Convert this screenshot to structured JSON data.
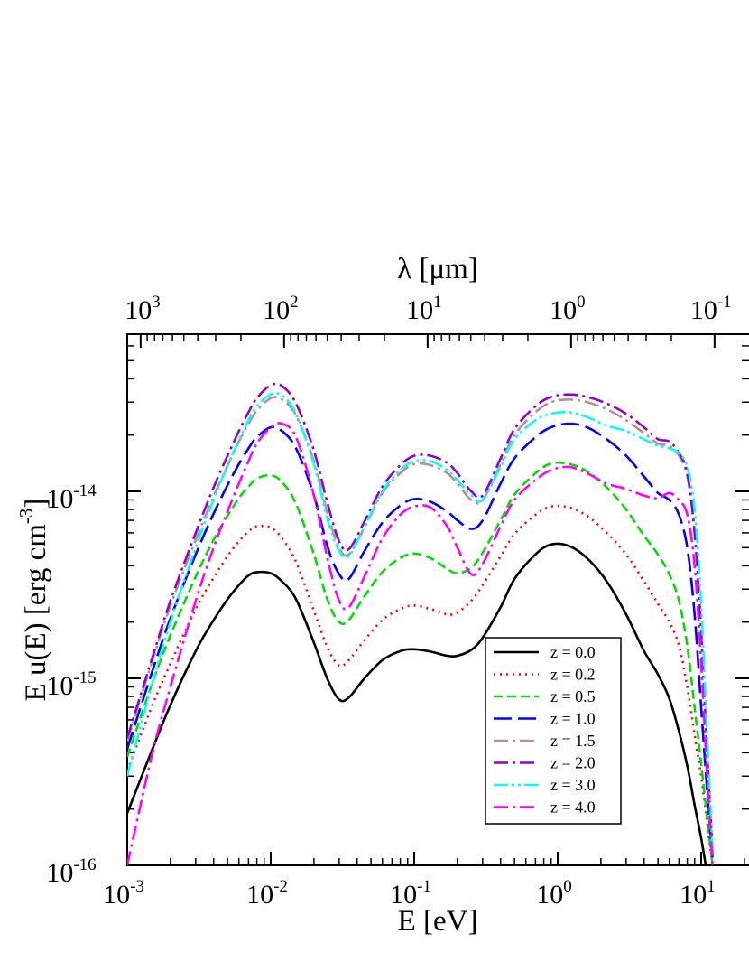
{
  "chart_data": {
    "type": "line",
    "xlabel": "E [eV]",
    "ylabel": "E u(E) [erg cm",
    "ylabel_sup": "-3",
    "ylabel_end": "]",
    "top_xlabel": "λ [μm]",
    "x_scale": "log",
    "y_scale": "log",
    "xlim": [
      0.001,
      17.8
    ],
    "ylim": [
      1e-16,
      6e-14
    ],
    "grid": false,
    "legend_position": "lower-right",
    "x_ticks": [
      {
        "base": "10",
        "exp": "-3",
        "value": 0.001
      },
      {
        "base": "10",
        "exp": "-2",
        "value": 0.01
      },
      {
        "base": "10",
        "exp": "-1",
        "value": 0.1
      },
      {
        "base": "10",
        "exp": "0",
        "value": 1
      },
      {
        "base": "10",
        "exp": "1",
        "value": 10
      }
    ],
    "top_ticks": [
      {
        "base": "10",
        "exp": "3",
        "lambda": 1000
      },
      {
        "base": "10",
        "exp": "2",
        "lambda": 100
      },
      {
        "base": "10",
        "exp": "1",
        "lambda": 10
      },
      {
        "base": "10",
        "exp": "0",
        "lambda": 1
      },
      {
        "base": "10",
        "exp": "-1",
        "lambda": 0.1
      }
    ],
    "y_ticks": [
      {
        "base": "10",
        "exp": "-16",
        "value": 1e-16
      },
      {
        "base": "10",
        "exp": "-15",
        "value": 1e-15
      },
      {
        "base": "10",
        "exp": "-14",
        "value": 1e-14
      }
    ],
    "series": [
      {
        "name": "z = 0.0",
        "color": "#000000",
        "dash": "solid",
        "x": [
          0.001,
          0.0015,
          0.002,
          0.003,
          0.004,
          0.005,
          0.006,
          0.007,
          0.008,
          0.01,
          0.012,
          0.015,
          0.02,
          0.025,
          0.03,
          0.035,
          0.045,
          0.06,
          0.08,
          0.1,
          0.13,
          0.17,
          0.2,
          0.25,
          0.3,
          0.4,
          0.5,
          0.7,
          0.9,
          1.2,
          1.6,
          2.2,
          3.0,
          4.0,
          5.0,
          6.0,
          7.0,
          8.0,
          9.0,
          10.0,
          11.0
        ],
        "y": [
          1.9e-16,
          4.2e-16,
          7.2e-16,
          1.4e-15,
          2.05e-15,
          2.65e-15,
          3.15e-15,
          3.55e-15,
          3.7e-15,
          3.65e-15,
          3.3e-15,
          2.65e-15,
          1.55e-15,
          9.8e-16,
          7.7e-16,
          7.9e-16,
          1e-15,
          1.25e-15,
          1.4e-15,
          1.43e-15,
          1.39e-15,
          1.32e-15,
          1.32e-15,
          1.42e-15,
          1.65e-15,
          2.4e-15,
          3.4e-15,
          4.6e-15,
          5.2e-15,
          5.1e-15,
          4.4e-15,
          3.3e-15,
          2.2e-15,
          1.4e-15,
          1.05e-15,
          7.8e-16,
          5.2e-16,
          3.4e-16,
          2.1e-16,
          1.4e-16,
          9e-17
        ]
      },
      {
        "name": "z = 0.2",
        "color": "#ff0000",
        "dash": "dotted",
        "x": [
          0.001,
          0.0015,
          0.002,
          0.003,
          0.004,
          0.005,
          0.006,
          0.007,
          0.008,
          0.01,
          0.012,
          0.015,
          0.02,
          0.025,
          0.03,
          0.035,
          0.045,
          0.06,
          0.08,
          0.1,
          0.13,
          0.17,
          0.2,
          0.25,
          0.3,
          0.4,
          0.5,
          0.7,
          0.9,
          1.2,
          1.6,
          2.2,
          3.0,
          4.0,
          5.0,
          6.0,
          7.0,
          8.0,
          9.0,
          10.0,
          11.0,
          12.0
        ],
        "y": [
          3.2e-16,
          7.2e-16,
          1.2e-15,
          2.35e-15,
          3.45e-15,
          4.5e-15,
          5.4e-15,
          6.1e-15,
          6.5e-15,
          6.4e-15,
          5.6e-15,
          4.2e-15,
          2.3e-15,
          1.45e-15,
          1.17e-15,
          1.25e-15,
          1.6e-15,
          2.05e-15,
          2.35e-15,
          2.45e-15,
          2.35e-15,
          2.2e-15,
          2.25e-15,
          2.6e-15,
          3.15e-15,
          4.5e-15,
          5.9e-15,
          7.5e-15,
          8.3e-15,
          8.2e-15,
          7.4e-15,
          6e-15,
          4.6e-15,
          3.3e-15,
          2.5e-15,
          2e-15,
          1.5e-15,
          9e-16,
          5e-16,
          3e-16,
          1.7e-16,
          1e-16
        ]
      },
      {
        "name": "z = 0.5",
        "color": "#00dd00",
        "dash": "dashed",
        "x": [
          0.001,
          0.0015,
          0.002,
          0.003,
          0.004,
          0.005,
          0.006,
          0.007,
          0.008,
          0.01,
          0.012,
          0.015,
          0.02,
          0.025,
          0.03,
          0.035,
          0.045,
          0.06,
          0.08,
          0.1,
          0.13,
          0.17,
          0.2,
          0.25,
          0.3,
          0.4,
          0.5,
          0.7,
          0.9,
          1.2,
          1.6,
          2.2,
          3.0,
          4.0,
          5.0,
          6.0,
          7.0,
          8.0,
          9.0,
          10.0,
          11.0,
          12.0
        ],
        "y": [
          3.8e-16,
          9.5e-16,
          1.7e-15,
          3.5e-15,
          5.5e-15,
          7.4e-15,
          9.2e-15,
          1.06e-14,
          1.17e-14,
          1.22e-14,
          1.12e-14,
          8.6e-15,
          4.6e-15,
          2.6e-15,
          2e-15,
          2.05e-15,
          2.75e-15,
          3.7e-15,
          4.4e-15,
          4.65e-15,
          4.4e-15,
          3.85e-15,
          3.65e-15,
          3.9e-15,
          4.7e-15,
          7e-15,
          9.6e-15,
          1.25e-14,
          1.41e-14,
          1.4e-14,
          1.28e-14,
          1.05e-14,
          8e-15,
          5.8e-15,
          4.6e-15,
          3.6e-15,
          2.6e-15,
          1.5e-15,
          7e-16,
          3.5e-16,
          1.8e-16,
          1e-16
        ]
      },
      {
        "name": "z = 1.0",
        "color": "#0000ff",
        "dash": "longdash",
        "x": [
          0.001,
          0.0015,
          0.002,
          0.003,
          0.004,
          0.005,
          0.006,
          0.007,
          0.008,
          0.01,
          0.012,
          0.015,
          0.02,
          0.025,
          0.03,
          0.035,
          0.045,
          0.06,
          0.08,
          0.1,
          0.13,
          0.17,
          0.2,
          0.25,
          0.3,
          0.4,
          0.5,
          0.7,
          0.9,
          1.2,
          1.6,
          2.2,
          3.0,
          4.0,
          5.0,
          6.0,
          7.0,
          8.0,
          9.0,
          10.0,
          11.0,
          12.0
        ],
        "y": [
          4.2e-16,
          1.1e-15,
          2.1e-15,
          4.6e-15,
          7.6e-15,
          1.08e-14,
          1.4e-14,
          1.7e-14,
          1.95e-14,
          2.2e-14,
          2.1e-14,
          1.7e-14,
          9.5e-15,
          5e-15,
          3.6e-15,
          3.4e-15,
          4.8e-15,
          6.8e-15,
          8.4e-15,
          9.1e-15,
          8.8e-15,
          7.8e-15,
          7e-15,
          6.3e-15,
          7e-15,
          1.1e-14,
          1.5e-14,
          1.95e-14,
          2.2e-14,
          2.3e-14,
          2.2e-14,
          1.9e-14,
          1.55e-14,
          1.2e-14,
          9.8e-15,
          9e-15,
          7.5e-15,
          5e-15,
          2.2e-15,
          7e-16,
          2.5e-16,
          1.1e-16
        ]
      },
      {
        "name": "z = 1.5",
        "color": "#bc8f8f",
        "dash": "dashdot",
        "x": [
          0.001,
          0.0015,
          0.002,
          0.003,
          0.004,
          0.005,
          0.006,
          0.007,
          0.008,
          0.01,
          0.012,
          0.015,
          0.02,
          0.025,
          0.03,
          0.035,
          0.045,
          0.06,
          0.08,
          0.1,
          0.13,
          0.17,
          0.2,
          0.25,
          0.3,
          0.4,
          0.5,
          0.7,
          0.9,
          1.2,
          1.6,
          2.2,
          3.0,
          4.0,
          5.0,
          6.0,
          7.0,
          8.0,
          9.0,
          10.0,
          11.0,
          12.0
        ],
        "y": [
          4.6e-16,
          1.25e-15,
          2.45e-15,
          5.5e-15,
          9.4e-15,
          1.37e-14,
          1.85e-14,
          2.3e-14,
          2.7e-14,
          3.15e-14,
          3.1e-14,
          2.55e-14,
          1.45e-14,
          7.5e-15,
          5e-15,
          4.6e-15,
          6.4e-15,
          9.8e-15,
          1.25e-14,
          1.4e-14,
          1.38e-14,
          1.25e-14,
          1.1e-14,
          9e-15,
          9e-15,
          1.4e-14,
          2e-14,
          2.65e-14,
          3e-14,
          3.1e-14,
          3e-14,
          2.75e-14,
          2.4e-14,
          2.05e-14,
          1.8e-14,
          1.75e-14,
          1.55e-14,
          1.2e-14,
          6e-15,
          1.8e-15,
          4e-16,
          1.2e-16
        ]
      },
      {
        "name": "z = 2.0",
        "color": "#9400d3",
        "dash": "dashdot",
        "x": [
          0.001,
          0.0015,
          0.002,
          0.003,
          0.004,
          0.005,
          0.006,
          0.007,
          0.008,
          0.01,
          0.012,
          0.015,
          0.02,
          0.025,
          0.03,
          0.035,
          0.045,
          0.06,
          0.08,
          0.1,
          0.13,
          0.17,
          0.2,
          0.25,
          0.3,
          0.4,
          0.5,
          0.7,
          0.9,
          1.2,
          1.6,
          2.2,
          3.0,
          4.0,
          5.0,
          6.0,
          7.0,
          8.0,
          9.0,
          10.0,
          11.0,
          12.0
        ],
        "y": [
          4.8e-16,
          1.3e-15,
          2.6e-15,
          6e-15,
          1.05e-14,
          1.55e-14,
          2.1e-14,
          2.65e-14,
          3.15e-14,
          3.7e-14,
          3.65e-14,
          2.95e-14,
          1.65e-14,
          8.5e-15,
          5.4e-15,
          4.9e-15,
          6.9e-15,
          1.06e-14,
          1.38e-14,
          1.55e-14,
          1.55e-14,
          1.42e-14,
          1.25e-14,
          1e-14,
          9.5e-15,
          1.5e-14,
          2.15e-14,
          2.85e-14,
          3.2e-14,
          3.3e-14,
          3.2e-14,
          2.95e-14,
          2.6e-14,
          2.2e-14,
          1.9e-14,
          1.85e-14,
          1.6e-14,
          1.25e-14,
          6e-15,
          1.8e-15,
          4e-16,
          1.2e-16
        ]
      },
      {
        "name": "z = 3.0",
        "color": "#00ffff",
        "dash": "dashdotdot",
        "x": [
          0.001,
          0.0015,
          0.002,
          0.003,
          0.004,
          0.005,
          0.006,
          0.007,
          0.008,
          0.01,
          0.012,
          0.015,
          0.02,
          0.025,
          0.03,
          0.035,
          0.045,
          0.06,
          0.08,
          0.1,
          0.13,
          0.17,
          0.2,
          0.25,
          0.3,
          0.4,
          0.5,
          0.7,
          0.9,
          1.2,
          1.6,
          2.2,
          3.0,
          4.0,
          5.0,
          6.0,
          7.0,
          8.0,
          9.0,
          10.0,
          11.0,
          12.0
        ],
        "y": [
          3e-16,
          9.5e-16,
          2e-15,
          5e-15,
          9e-15,
          1.37e-14,
          1.88e-14,
          2.4e-14,
          2.85e-14,
          3.3e-14,
          3.25e-14,
          2.6e-14,
          1.4e-14,
          7e-15,
          4.8e-15,
          4.5e-15,
          6.5e-15,
          1e-14,
          1.3e-14,
          1.45e-14,
          1.45e-14,
          1.3e-14,
          1.15e-14,
          9.5e-15,
          9e-15,
          1.35e-14,
          1.9e-14,
          2.4e-14,
          2.6e-14,
          2.65e-14,
          2.5e-14,
          2.25e-14,
          2.1e-14,
          1.9e-14,
          1.75e-14,
          1.7e-14,
          1.6e-14,
          1.35e-14,
          8e-15,
          2.5e-15,
          5e-16,
          1.2e-16
        ]
      },
      {
        "name": "z = 4.0",
        "color": "#ff00ff",
        "dash": "dashdot",
        "x": [
          0.001,
          0.0015,
          0.002,
          0.003,
          0.004,
          0.005,
          0.006,
          0.007,
          0.008,
          0.01,
          0.012,
          0.015,
          0.02,
          0.025,
          0.03,
          0.035,
          0.045,
          0.06,
          0.08,
          0.1,
          0.13,
          0.17,
          0.2,
          0.25,
          0.3,
          0.4,
          0.5,
          0.7,
          0.9,
          1.2,
          1.6,
          2.2,
          3.0,
          4.0,
          5.0,
          6.0,
          7.0,
          8.0,
          9.0,
          10.0,
          11.0,
          12.0
        ],
        "y": [
          1e-16,
          4e-16,
          9e-16,
          2.6e-15,
          5e-15,
          7.8e-15,
          1.1e-14,
          1.45e-14,
          1.8e-14,
          2.2e-14,
          2.3e-14,
          1.95e-14,
          9.5e-15,
          4.3e-15,
          2.6e-15,
          2.4e-15,
          3.5e-15,
          5.6e-15,
          7.5e-15,
          8.3e-15,
          8.2e-15,
          6.5e-15,
          5e-15,
          3.6e-15,
          4.1e-15,
          6.5e-15,
          9e-15,
          1.15e-14,
          1.3e-14,
          1.35e-14,
          1.25e-14,
          1.1e-14,
          1.03e-14,
          9.5e-15,
          9.2e-15,
          9.8e-15,
          9e-15,
          7.5e-15,
          4e-15,
          1.2e-15,
          3e-16,
          1e-16
        ]
      }
    ]
  }
}
